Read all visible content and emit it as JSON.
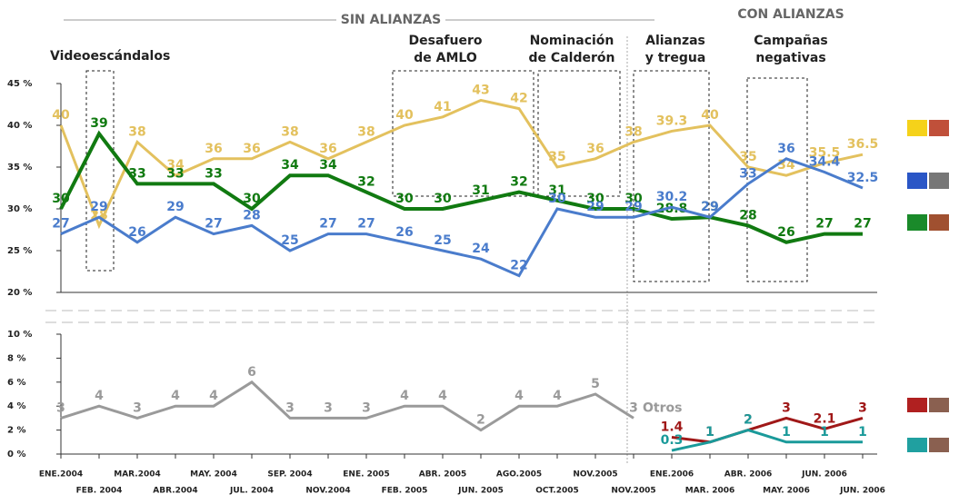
{
  "chart_data": [
    {
      "type": "line",
      "header_left": "SIN ALIANZAS",
      "header_right": "CON ALIANZAS",
      "annotations": [
        [
          "Videoescándalos"
        ],
        [
          "Desafuero",
          "de AMLO"
        ],
        [
          "Nominación",
          "de Calderón"
        ],
        [
          "Alianzas",
          "y tregua"
        ],
        [
          "Campañas",
          "negativas"
        ]
      ],
      "ylim": [
        20,
        45
      ],
      "yticks": [
        {
          "value": 20,
          "label": "20 %"
        },
        {
          "value": 25,
          "label": "25 %"
        },
        {
          "value": 30,
          "label": "30 %"
        },
        {
          "value": 35,
          "label": "35 %"
        },
        {
          "value": 40,
          "label": "40 %"
        },
        {
          "value": 45,
          "label": "45 %"
        }
      ],
      "series": [
        {
          "color": "#e3c15e",
          "values": [
            40,
            28,
            38,
            34,
            36,
            36,
            38,
            36,
            38,
            40,
            41,
            43,
            42,
            35,
            36,
            38,
            39.3,
            40,
            35,
            34,
            35.5,
            36.5
          ]
        },
        {
          "color": "#117a11",
          "values": [
            30,
            39,
            33,
            33,
            33,
            30,
            34,
            34,
            32,
            30,
            30,
            31,
            32,
            31,
            30,
            30,
            28.8,
            29,
            28,
            26,
            27,
            27
          ]
        },
        {
          "color": "#4a7ccc",
          "values": [
            27,
            29,
            26,
            29,
            27,
            28,
            25,
            27,
            27,
            26,
            25,
            24,
            22,
            30,
            29,
            29,
            30.2,
            29,
            33,
            36,
            34.4,
            32.5
          ]
        }
      ]
    },
    {
      "type": "line",
      "categories": [
        "ENE.2004",
        "FEB. 2004",
        "MAR.2004",
        "ABR.2004",
        "MAY. 2004",
        "JUL. 2004",
        "SEP. 2004",
        "NOV.2004",
        "ENE. 2005",
        "FEB. 2005",
        "ABR. 2005",
        "JUN. 2005",
        "AGO.2005",
        "OCT.2005",
        "NOV.2005",
        "NOV.2005",
        "ENE.2006",
        "MAR. 2006",
        "ABR. 2006",
        "MAY. 2006",
        "JUN. 2006",
        "JUN. 2006"
      ],
      "ylim": [
        0,
        10
      ],
      "yticks": [
        {
          "value": 0,
          "label": "0 %"
        },
        {
          "value": 2,
          "label": "2 %"
        },
        {
          "value": 4,
          "label": "4 %"
        },
        {
          "value": 6,
          "label": "6 %"
        },
        {
          "value": 8,
          "label": "8 %"
        },
        {
          "value": 10,
          "label": "10 %"
        }
      ],
      "series": [
        {
          "name": "Otros",
          "color": "#9a9a9a",
          "values": [
            3,
            4,
            3,
            4,
            4,
            6,
            3,
            3,
            3,
            4,
            4,
            2,
            4,
            4,
            5,
            3,
            null,
            null,
            null,
            null,
            null,
            null
          ]
        },
        {
          "color": "#a01818",
          "values": [
            null,
            null,
            null,
            null,
            null,
            null,
            null,
            null,
            null,
            null,
            null,
            null,
            null,
            null,
            null,
            null,
            1.4,
            1,
            2,
            3,
            2.1,
            3
          ]
        },
        {
          "color": "#1a9a9a",
          "values": [
            null,
            null,
            null,
            null,
            null,
            null,
            null,
            null,
            null,
            null,
            null,
            null,
            null,
            null,
            null,
            null,
            0.3,
            1,
            2,
            1,
            1,
            1
          ]
        }
      ]
    }
  ]
}
